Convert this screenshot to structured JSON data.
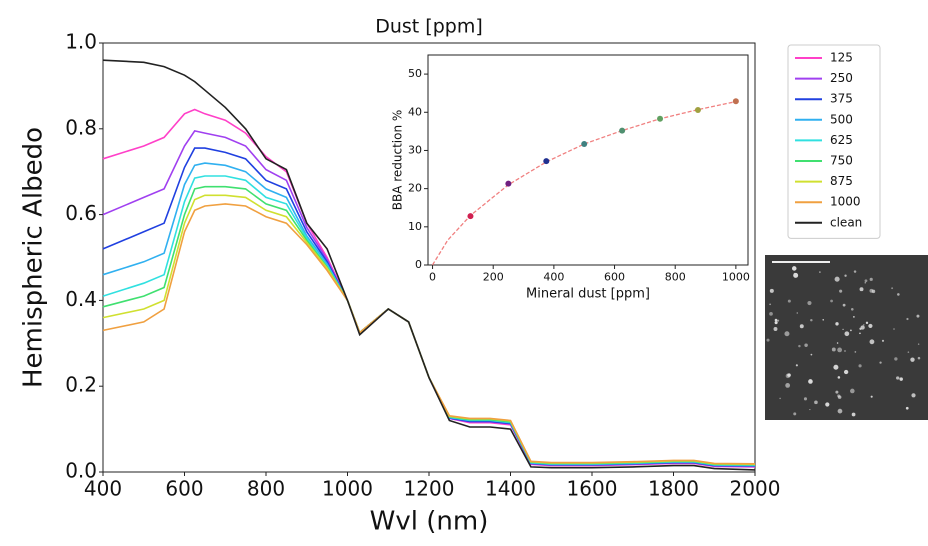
{
  "chart_data": [
    {
      "type": "line",
      "title": "Dust [ppm]",
      "xlabel": "Wvl (nm)",
      "ylabel": "Hemispheric Albedo",
      "x": [
        400,
        500,
        550,
        600,
        625,
        650,
        700,
        750,
        800,
        850,
        900,
        950,
        1000,
        1030,
        1100,
        1150,
        1200,
        1250,
        1300,
        1350,
        1400,
        1450,
        1500,
        1600,
        1700,
        1800,
        1850,
        1900,
        2000
      ],
      "series": [
        {
          "name": "125",
          "color": "#ff40c8",
          "values": [
            0.73,
            0.76,
            0.78,
            0.835,
            0.845,
            0.835,
            0.82,
            0.79,
            0.735,
            0.7,
            0.58,
            0.5,
            0.4,
            0.325,
            0.38,
            0.35,
            0.22,
            0.125,
            0.115,
            0.115,
            0.11,
            0.018,
            0.015,
            0.015,
            0.017,
            0.02,
            0.02,
            0.013,
            0.012
          ]
        },
        {
          "name": "250",
          "color": "#a040f0",
          "values": [
            0.6,
            0.64,
            0.66,
            0.76,
            0.795,
            0.79,
            0.78,
            0.76,
            0.705,
            0.68,
            0.57,
            0.495,
            0.4,
            0.325,
            0.38,
            0.35,
            0.22,
            0.125,
            0.117,
            0.117,
            0.112,
            0.019,
            0.016,
            0.016,
            0.018,
            0.021,
            0.021,
            0.014,
            0.013
          ]
        },
        {
          "name": "375",
          "color": "#2040e0",
          "values": [
            0.52,
            0.56,
            0.58,
            0.71,
            0.755,
            0.755,
            0.745,
            0.73,
            0.68,
            0.66,
            0.56,
            0.49,
            0.4,
            0.325,
            0.38,
            0.35,
            0.22,
            0.126,
            0.118,
            0.118,
            0.113,
            0.02,
            0.017,
            0.017,
            0.019,
            0.022,
            0.022,
            0.015,
            0.014
          ]
        },
        {
          "name": "500",
          "color": "#30b0f0",
          "values": [
            0.46,
            0.49,
            0.51,
            0.67,
            0.715,
            0.72,
            0.715,
            0.7,
            0.66,
            0.64,
            0.55,
            0.485,
            0.4,
            0.325,
            0.38,
            0.35,
            0.22,
            0.127,
            0.12,
            0.12,
            0.115,
            0.021,
            0.018,
            0.018,
            0.02,
            0.023,
            0.023,
            0.016,
            0.015
          ]
        },
        {
          "name": "625",
          "color": "#30e0e0",
          "values": [
            0.41,
            0.44,
            0.46,
            0.63,
            0.685,
            0.69,
            0.69,
            0.68,
            0.64,
            0.625,
            0.545,
            0.48,
            0.4,
            0.325,
            0.38,
            0.35,
            0.22,
            0.128,
            0.121,
            0.121,
            0.116,
            0.022,
            0.019,
            0.019,
            0.021,
            0.024,
            0.024,
            0.017,
            0.016
          ]
        },
        {
          "name": "750",
          "color": "#40e070",
          "values": [
            0.385,
            0.41,
            0.43,
            0.6,
            0.66,
            0.665,
            0.665,
            0.66,
            0.625,
            0.61,
            0.54,
            0.478,
            0.4,
            0.325,
            0.38,
            0.35,
            0.22,
            0.129,
            0.122,
            0.122,
            0.117,
            0.023,
            0.02,
            0.02,
            0.022,
            0.025,
            0.025,
            0.018,
            0.017
          ]
        },
        {
          "name": "875",
          "color": "#d0e030",
          "values": [
            0.36,
            0.38,
            0.4,
            0.58,
            0.635,
            0.645,
            0.645,
            0.64,
            0.61,
            0.595,
            0.535,
            0.475,
            0.4,
            0.325,
            0.38,
            0.35,
            0.22,
            0.13,
            0.124,
            0.124,
            0.119,
            0.024,
            0.021,
            0.021,
            0.023,
            0.026,
            0.026,
            0.019,
            0.018
          ]
        },
        {
          "name": "1000",
          "color": "#f0a040",
          "values": [
            0.33,
            0.35,
            0.38,
            0.56,
            0.61,
            0.62,
            0.625,
            0.62,
            0.595,
            0.58,
            0.53,
            0.47,
            0.4,
            0.325,
            0.38,
            0.35,
            0.22,
            0.131,
            0.125,
            0.125,
            0.12,
            0.025,
            0.022,
            0.022,
            0.024,
            0.027,
            0.027,
            0.02,
            0.019
          ]
        },
        {
          "name": "clean",
          "color": "#222222",
          "values": [
            0.96,
            0.955,
            0.945,
            0.925,
            0.91,
            0.89,
            0.85,
            0.8,
            0.73,
            0.705,
            0.58,
            0.52,
            0.4,
            0.32,
            0.38,
            0.35,
            0.22,
            0.12,
            0.105,
            0.105,
            0.1,
            0.012,
            0.01,
            0.01,
            0.012,
            0.015,
            0.015,
            0.008,
            0.005
          ]
        }
      ],
      "xlim": [
        400,
        2000
      ],
      "xticks": [
        400,
        600,
        800,
        1000,
        1200,
        1400,
        1600,
        1800,
        2000
      ],
      "ylim": [
        0,
        1
      ],
      "yticks": [
        {
          "value": 0,
          "label": "0.0"
        },
        0.2,
        0.4,
        0.6,
        0.8,
        {
          "value": 1,
          "label": "1.0"
        }
      ]
    },
    {
      "type": "scatter",
      "xlabel": "Mineral dust [ppm]",
      "ylabel": "BBA reduction %",
      "x": [
        125,
        250,
        375,
        500,
        625,
        750,
        875,
        1000
      ],
      "values": [
        12.8,
        21.3,
        27.2,
        31.7,
        35.2,
        38.3,
        40.6,
        42.9
      ],
      "colors": [
        "#d02050",
        "#702080",
        "#203090",
        "#408080",
        "#509070",
        "#60a060",
        "#a0a040",
        "#c07050"
      ],
      "fit": {
        "color": "#f08080",
        "x": [
          0,
          50,
          125,
          250,
          375,
          500,
          625,
          750,
          875,
          1000
        ],
        "values": [
          0,
          6.5,
          13,
          21,
          27,
          31.7,
          35.2,
          38.3,
          40.7,
          42.8
        ]
      },
      "xlim": [
        -15,
        1040
      ],
      "xticks": [
        0,
        200,
        400,
        600,
        800,
        1000
      ],
      "ylim": [
        0,
        55
      ],
      "yticks": [
        0,
        10,
        20,
        30,
        40,
        50
      ]
    }
  ]
}
